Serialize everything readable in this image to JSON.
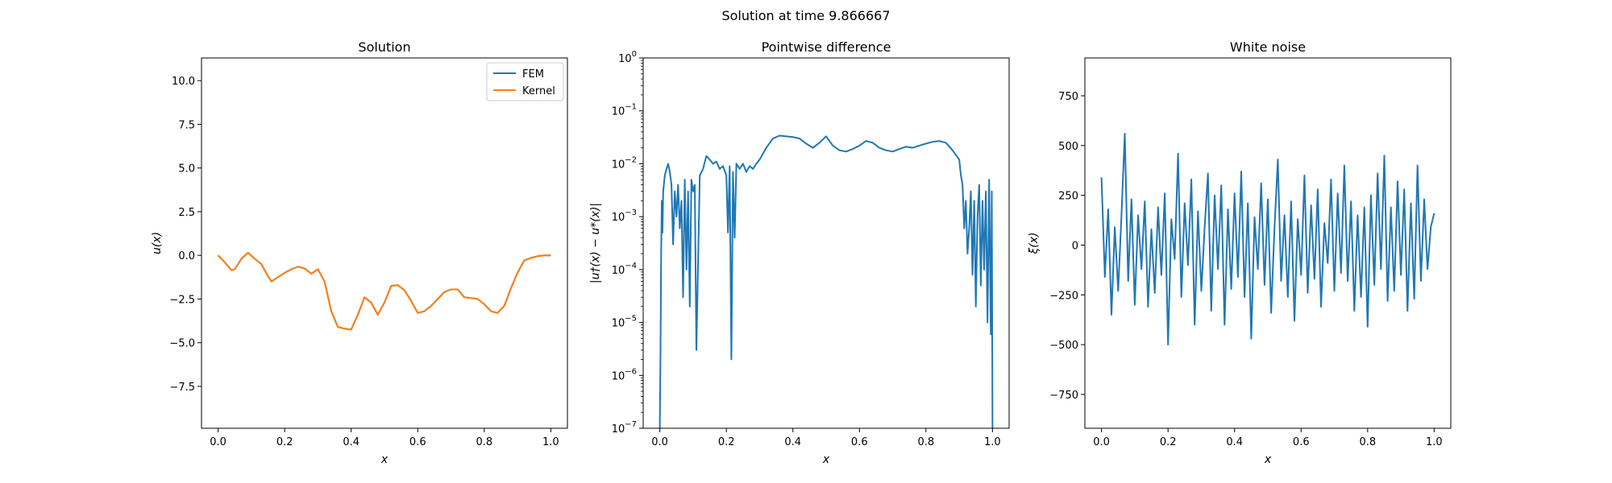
{
  "figure": {
    "suptitle": "Solution at time 9.866667"
  },
  "colors": {
    "fem": "#1f77b4",
    "kernel": "#ff7f0e",
    "noise": "#1f77b4",
    "diff": "#1f77b4"
  },
  "chart_data": [
    {
      "type": "line",
      "title": "Solution",
      "xlabel": "x",
      "ylabel": "u(x)",
      "xlim": [
        -0.05,
        1.05
      ],
      "ylim": [
        -9.9,
        11.3
      ],
      "xticks": [
        0.0,
        0.2,
        0.4,
        0.6,
        0.8,
        1.0
      ],
      "xtick_labels": [
        "0.0",
        "0.2",
        "0.4",
        "0.6",
        "0.8",
        "1.0"
      ],
      "yticks": [
        10.0,
        7.5,
        5.0,
        2.5,
        0.0,
        -2.5,
        -5.0,
        -7.5
      ],
      "ytick_labels": [
        "10.0",
        "7.5",
        "5.0",
        "2.5",
        "0.0",
        "−2.5",
        "−5.0",
        "−7.5"
      ],
      "legend_position": "top-right",
      "series": [
        {
          "name": "FEM",
          "color": "#1f77b4",
          "x": [
            0.0,
            0.02,
            0.04,
            0.05,
            0.07,
            0.09,
            0.11,
            0.13,
            0.15,
            0.16,
            0.18,
            0.2,
            0.22,
            0.24,
            0.26,
            0.28,
            0.3,
            0.32,
            0.34,
            0.36,
            0.38,
            0.4,
            0.42,
            0.44,
            0.46,
            0.48,
            0.5,
            0.52,
            0.54,
            0.56,
            0.58,
            0.6,
            0.62,
            0.64,
            0.66,
            0.68,
            0.7,
            0.72,
            0.74,
            0.76,
            0.78,
            0.8,
            0.82,
            0.84,
            0.86,
            0.88,
            0.9,
            0.92,
            0.94,
            0.96,
            0.98,
            1.0
          ],
          "y": [
            0.0,
            -0.4,
            -0.85,
            -0.8,
            -0.2,
            0.15,
            -0.2,
            -0.5,
            -1.2,
            -1.5,
            -1.25,
            -1.0,
            -0.8,
            -0.65,
            -0.75,
            -1.05,
            -0.8,
            -1.5,
            -3.2,
            -4.1,
            -4.2,
            -4.25,
            -3.4,
            -2.4,
            -2.7,
            -3.4,
            -2.7,
            -1.75,
            -1.7,
            -2.0,
            -2.6,
            -3.3,
            -3.2,
            -2.9,
            -2.5,
            -2.1,
            -1.95,
            -1.95,
            -2.4,
            -2.45,
            -2.5,
            -2.8,
            -3.2,
            -3.3,
            -2.9,
            -1.9,
            -1.0,
            -0.3,
            -0.15,
            -0.05,
            0.0,
            0.0
          ]
        },
        {
          "name": "Kernel",
          "color": "#ff7f0e",
          "x": [
            0.0,
            0.02,
            0.04,
            0.05,
            0.07,
            0.09,
            0.11,
            0.13,
            0.15,
            0.16,
            0.18,
            0.2,
            0.22,
            0.24,
            0.26,
            0.28,
            0.3,
            0.32,
            0.34,
            0.36,
            0.38,
            0.4,
            0.42,
            0.44,
            0.46,
            0.48,
            0.5,
            0.52,
            0.54,
            0.56,
            0.58,
            0.6,
            0.62,
            0.64,
            0.66,
            0.68,
            0.7,
            0.72,
            0.74,
            0.76,
            0.78,
            0.8,
            0.82,
            0.84,
            0.86,
            0.88,
            0.9,
            0.92,
            0.94,
            0.96,
            0.98,
            1.0
          ],
          "y": [
            0.0,
            -0.4,
            -0.85,
            -0.8,
            -0.2,
            0.15,
            -0.2,
            -0.5,
            -1.2,
            -1.5,
            -1.25,
            -1.0,
            -0.8,
            -0.65,
            -0.75,
            -1.05,
            -0.8,
            -1.5,
            -3.2,
            -4.1,
            -4.2,
            -4.25,
            -3.4,
            -2.4,
            -2.7,
            -3.4,
            -2.7,
            -1.75,
            -1.7,
            -2.0,
            -2.6,
            -3.3,
            -3.2,
            -2.9,
            -2.5,
            -2.1,
            -1.95,
            -1.95,
            -2.4,
            -2.45,
            -2.5,
            -2.8,
            -3.2,
            -3.3,
            -2.9,
            -1.9,
            -1.0,
            -0.3,
            -0.15,
            -0.05,
            0.0,
            0.0
          ]
        }
      ]
    },
    {
      "type": "line",
      "title": "Pointwise difference",
      "xlabel": "x",
      "ylabel": "|u†(x) − u*(x)|",
      "xlim": [
        -0.05,
        1.05
      ],
      "ylim": [
        1e-07,
        1
      ],
      "yscale": "log",
      "xticks": [
        0.0,
        0.2,
        0.4,
        0.6,
        0.8,
        1.0
      ],
      "xtick_labels": [
        "0.0",
        "0.2",
        "0.4",
        "0.6",
        "0.8",
        "1.0"
      ],
      "yticks": [
        1,
        0.1,
        0.01,
        0.001,
        0.0001,
        1e-05,
        1e-06,
        1e-07
      ],
      "ytick_mantissa": "10",
      "ytick_exponents": [
        "0",
        "−1",
        "−2",
        "−3",
        "−4",
        "−5",
        "−6",
        "−7"
      ],
      "series": [
        {
          "name": "",
          "color": "#1f77b4",
          "x": [
            0.0,
            0.002,
            0.004,
            0.006,
            0.008,
            0.01,
            0.015,
            0.02,
            0.025,
            0.03,
            0.035,
            0.04,
            0.045,
            0.05,
            0.055,
            0.06,
            0.065,
            0.07,
            0.075,
            0.08,
            0.085,
            0.09,
            0.095,
            0.1,
            0.105,
            0.11,
            0.12,
            0.13,
            0.14,
            0.15,
            0.16,
            0.17,
            0.18,
            0.19,
            0.2,
            0.205,
            0.21,
            0.215,
            0.22,
            0.225,
            0.23,
            0.24,
            0.25,
            0.26,
            0.27,
            0.28,
            0.29,
            0.3,
            0.32,
            0.34,
            0.36,
            0.38,
            0.4,
            0.42,
            0.44,
            0.46,
            0.48,
            0.5,
            0.52,
            0.54,
            0.56,
            0.58,
            0.6,
            0.62,
            0.64,
            0.66,
            0.68,
            0.7,
            0.72,
            0.74,
            0.76,
            0.78,
            0.8,
            0.82,
            0.84,
            0.86,
            0.88,
            0.9,
            0.905,
            0.91,
            0.915,
            0.92,
            0.925,
            0.93,
            0.935,
            0.94,
            0.945,
            0.95,
            0.955,
            0.96,
            0.965,
            0.97,
            0.975,
            0.98,
            0.985,
            0.99,
            0.995,
            0.998,
            1.0
          ],
          "y": [
            1e-07,
            3e-06,
            0.0002,
            0.002,
            0.0005,
            0.003,
            0.006,
            0.008,
            0.01,
            0.007,
            0.004,
            0.0003,
            0.003,
            0.001,
            0.004,
            0.0006,
            0.002,
            3e-05,
            0.005,
            0.0001,
            0.003,
            2e-05,
            0.005,
            0.003,
            0.004,
            3e-06,
            0.006,
            0.008,
            0.014,
            0.012,
            0.01,
            0.011,
            0.008,
            0.009,
            0.006,
            0.0005,
            0.009,
            2e-06,
            0.007,
            0.0004,
            0.01,
            0.008,
            0.01,
            0.007,
            0.009,
            0.008,
            0.01,
            0.012,
            0.02,
            0.03,
            0.034,
            0.033,
            0.032,
            0.03,
            0.024,
            0.02,
            0.025,
            0.033,
            0.022,
            0.018,
            0.017,
            0.019,
            0.022,
            0.027,
            0.025,
            0.02,
            0.018,
            0.017,
            0.019,
            0.021,
            0.02,
            0.022,
            0.024,
            0.026,
            0.027,
            0.025,
            0.018,
            0.012,
            0.006,
            0.004,
            0.0006,
            0.002,
            0.0002,
            0.0006,
            0.003,
            8e-05,
            0.002,
            2e-05,
            0.001,
            0.004,
            5e-05,
            0.002,
            0.0001,
            0.003,
            1e-05,
            0.005,
            6e-06,
            0.003,
            1e-07
          ]
        }
      ]
    },
    {
      "type": "line",
      "title": "White noise",
      "xlabel": "x",
      "ylabel": "ξ(x)",
      "xlim": [
        -0.05,
        1.05
      ],
      "ylim": [
        -920,
        940
      ],
      "xticks": [
        0.0,
        0.2,
        0.4,
        0.6,
        0.8,
        1.0
      ],
      "xtick_labels": [
        "0.0",
        "0.2",
        "0.4",
        "0.6",
        "0.8",
        "1.0"
      ],
      "yticks": [
        750,
        500,
        250,
        0,
        -250,
        -500,
        -750
      ],
      "ytick_labels": [
        "750",
        "500",
        "250",
        "0",
        "−250",
        "−500",
        "−750"
      ],
      "series": [
        {
          "name": "",
          "color": "#1f77b4",
          "x": [
            0.0,
            0.01,
            0.02,
            0.03,
            0.04,
            0.05,
            0.06,
            0.07,
            0.08,
            0.09,
            0.1,
            0.11,
            0.12,
            0.13,
            0.14,
            0.15,
            0.16,
            0.17,
            0.18,
            0.19,
            0.2,
            0.21,
            0.22,
            0.23,
            0.24,
            0.25,
            0.26,
            0.27,
            0.28,
            0.29,
            0.3,
            0.31,
            0.32,
            0.33,
            0.34,
            0.35,
            0.36,
            0.37,
            0.38,
            0.39,
            0.4,
            0.41,
            0.42,
            0.43,
            0.44,
            0.45,
            0.46,
            0.47,
            0.48,
            0.49,
            0.5,
            0.51,
            0.52,
            0.53,
            0.54,
            0.55,
            0.56,
            0.57,
            0.58,
            0.59,
            0.6,
            0.61,
            0.62,
            0.63,
            0.64,
            0.65,
            0.66,
            0.67,
            0.68,
            0.69,
            0.7,
            0.71,
            0.72,
            0.73,
            0.74,
            0.75,
            0.76,
            0.77,
            0.78,
            0.79,
            0.8,
            0.81,
            0.82,
            0.83,
            0.84,
            0.85,
            0.86,
            0.87,
            0.88,
            0.89,
            0.9,
            0.91,
            0.92,
            0.93,
            0.94,
            0.95,
            0.96,
            0.97,
            0.98,
            0.99,
            1.0
          ],
          "y": [
            340,
            -160,
            180,
            -350,
            90,
            -230,
            150,
            560,
            -180,
            230,
            -300,
            150,
            -120,
            220,
            -310,
            80,
            -240,
            190,
            -150,
            260,
            -500,
            130,
            -70,
            460,
            -260,
            210,
            -100,
            330,
            -400,
            170,
            -230,
            90,
            360,
            -330,
            250,
            -120,
            300,
            -400,
            180,
            -220,
            260,
            -160,
            370,
            -260,
            210,
            -470,
            140,
            -120,
            310,
            -200,
            230,
            -340,
            90,
            430,
            -180,
            150,
            -260,
            220,
            -380,
            130,
            -150,
            350,
            -240,
            200,
            -170,
            280,
            -310,
            110,
            -90,
            330,
            -230,
            260,
            -140,
            400,
            -180,
            220,
            -330,
            150,
            -260,
            190,
            -410,
            250,
            -200,
            360,
            -120,
            450,
            -280,
            190,
            -230,
            320,
            -150,
            280,
            -330,
            210,
            -270,
            400,
            -180,
            230,
            -120,
            90,
            160
          ]
        }
      ]
    }
  ]
}
